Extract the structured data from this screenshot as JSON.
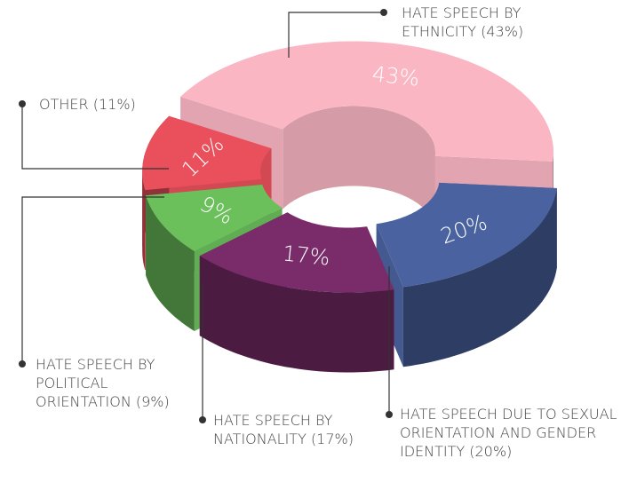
{
  "chart_data": {
    "type": "pie",
    "categories": [
      "HATE SPEECH BY ETHNICITY (43%)",
      "HATE SPEECH DUE TO SEXUAL ORIENTATION AND GENDER IDENTITY (20%)",
      "HATE SPEECH BY NATIONALITY (17%)",
      "HATE SPEECH BY POLITICAL ORIENTATION (9%)",
      "OTHER (11%)"
    ],
    "values": [
      43,
      20,
      17,
      9,
      11
    ],
    "value_labels": [
      "43%",
      "20%",
      "17%",
      "9%",
      "11%"
    ],
    "colors": [
      "#fbb6c4",
      "#4a63a0",
      "#7a2c6a",
      "#6cc05c",
      "#e9505c"
    ]
  }
}
